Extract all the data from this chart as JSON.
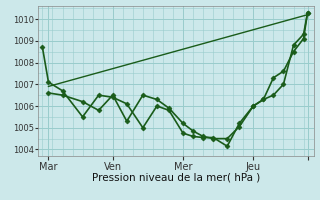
{
  "bg_color": "#cce8ea",
  "grid_color": "#99cccc",
  "line_color": "#1a5c1a",
  "xlabel": "Pression niveau de la mer( hPa )",
  "ylim": [
    1003.7,
    1010.6
  ],
  "yticks": [
    1004,
    1005,
    1006,
    1007,
    1008,
    1009,
    1010
  ],
  "xlim": [
    -0.2,
    13.5
  ],
  "x_major_ticks": [
    0.3,
    3.5,
    7.0,
    10.5,
    13.2
  ],
  "x_major_labels": [
    "Mar",
    "Ven",
    "Mer",
    "Jeu",
    ""
  ],
  "series_line": {
    "x": [
      0.3,
      13.2
    ],
    "y": [
      1006.9,
      1010.2
    ],
    "linewidth": 1.0,
    "marker": null
  },
  "series1": {
    "x": [
      0,
      0.3,
      1.0,
      2.0,
      2.8,
      3.5,
      4.2,
      5.0,
      5.7,
      6.3,
      7.0,
      7.5,
      8.0,
      8.5,
      9.2,
      9.8,
      10.5,
      11.0,
      11.5,
      12.0,
      12.5,
      13.0,
      13.2
    ],
    "y": [
      1008.7,
      1007.1,
      1006.7,
      1005.5,
      1006.5,
      1006.4,
      1006.1,
      1005.0,
      1006.0,
      1005.8,
      1004.75,
      1004.6,
      1004.55,
      1004.55,
      1004.15,
      1005.2,
      1006.0,
      1006.3,
      1007.3,
      1007.6,
      1008.5,
      1009.1,
      1010.3
    ],
    "marker": "D",
    "markersize": 2.5,
    "linewidth": 1.2
  },
  "series2": {
    "x": [
      0.3,
      1.0,
      2.0,
      2.8,
      3.5,
      4.2,
      5.0,
      5.7,
      6.3,
      7.0,
      7.5,
      8.0,
      8.5,
      9.2,
      9.8,
      10.5,
      11.0,
      11.5,
      12.0,
      12.5,
      13.0,
      13.2
    ],
    "y": [
      1006.6,
      1006.5,
      1006.2,
      1005.8,
      1006.5,
      1005.3,
      1006.5,
      1006.3,
      1005.9,
      1005.2,
      1004.85,
      1004.6,
      1004.5,
      1004.5,
      1005.05,
      1006.0,
      1006.3,
      1006.5,
      1007.0,
      1008.8,
      1009.3,
      1010.3
    ],
    "marker": "D",
    "markersize": 2.5,
    "linewidth": 1.2
  }
}
